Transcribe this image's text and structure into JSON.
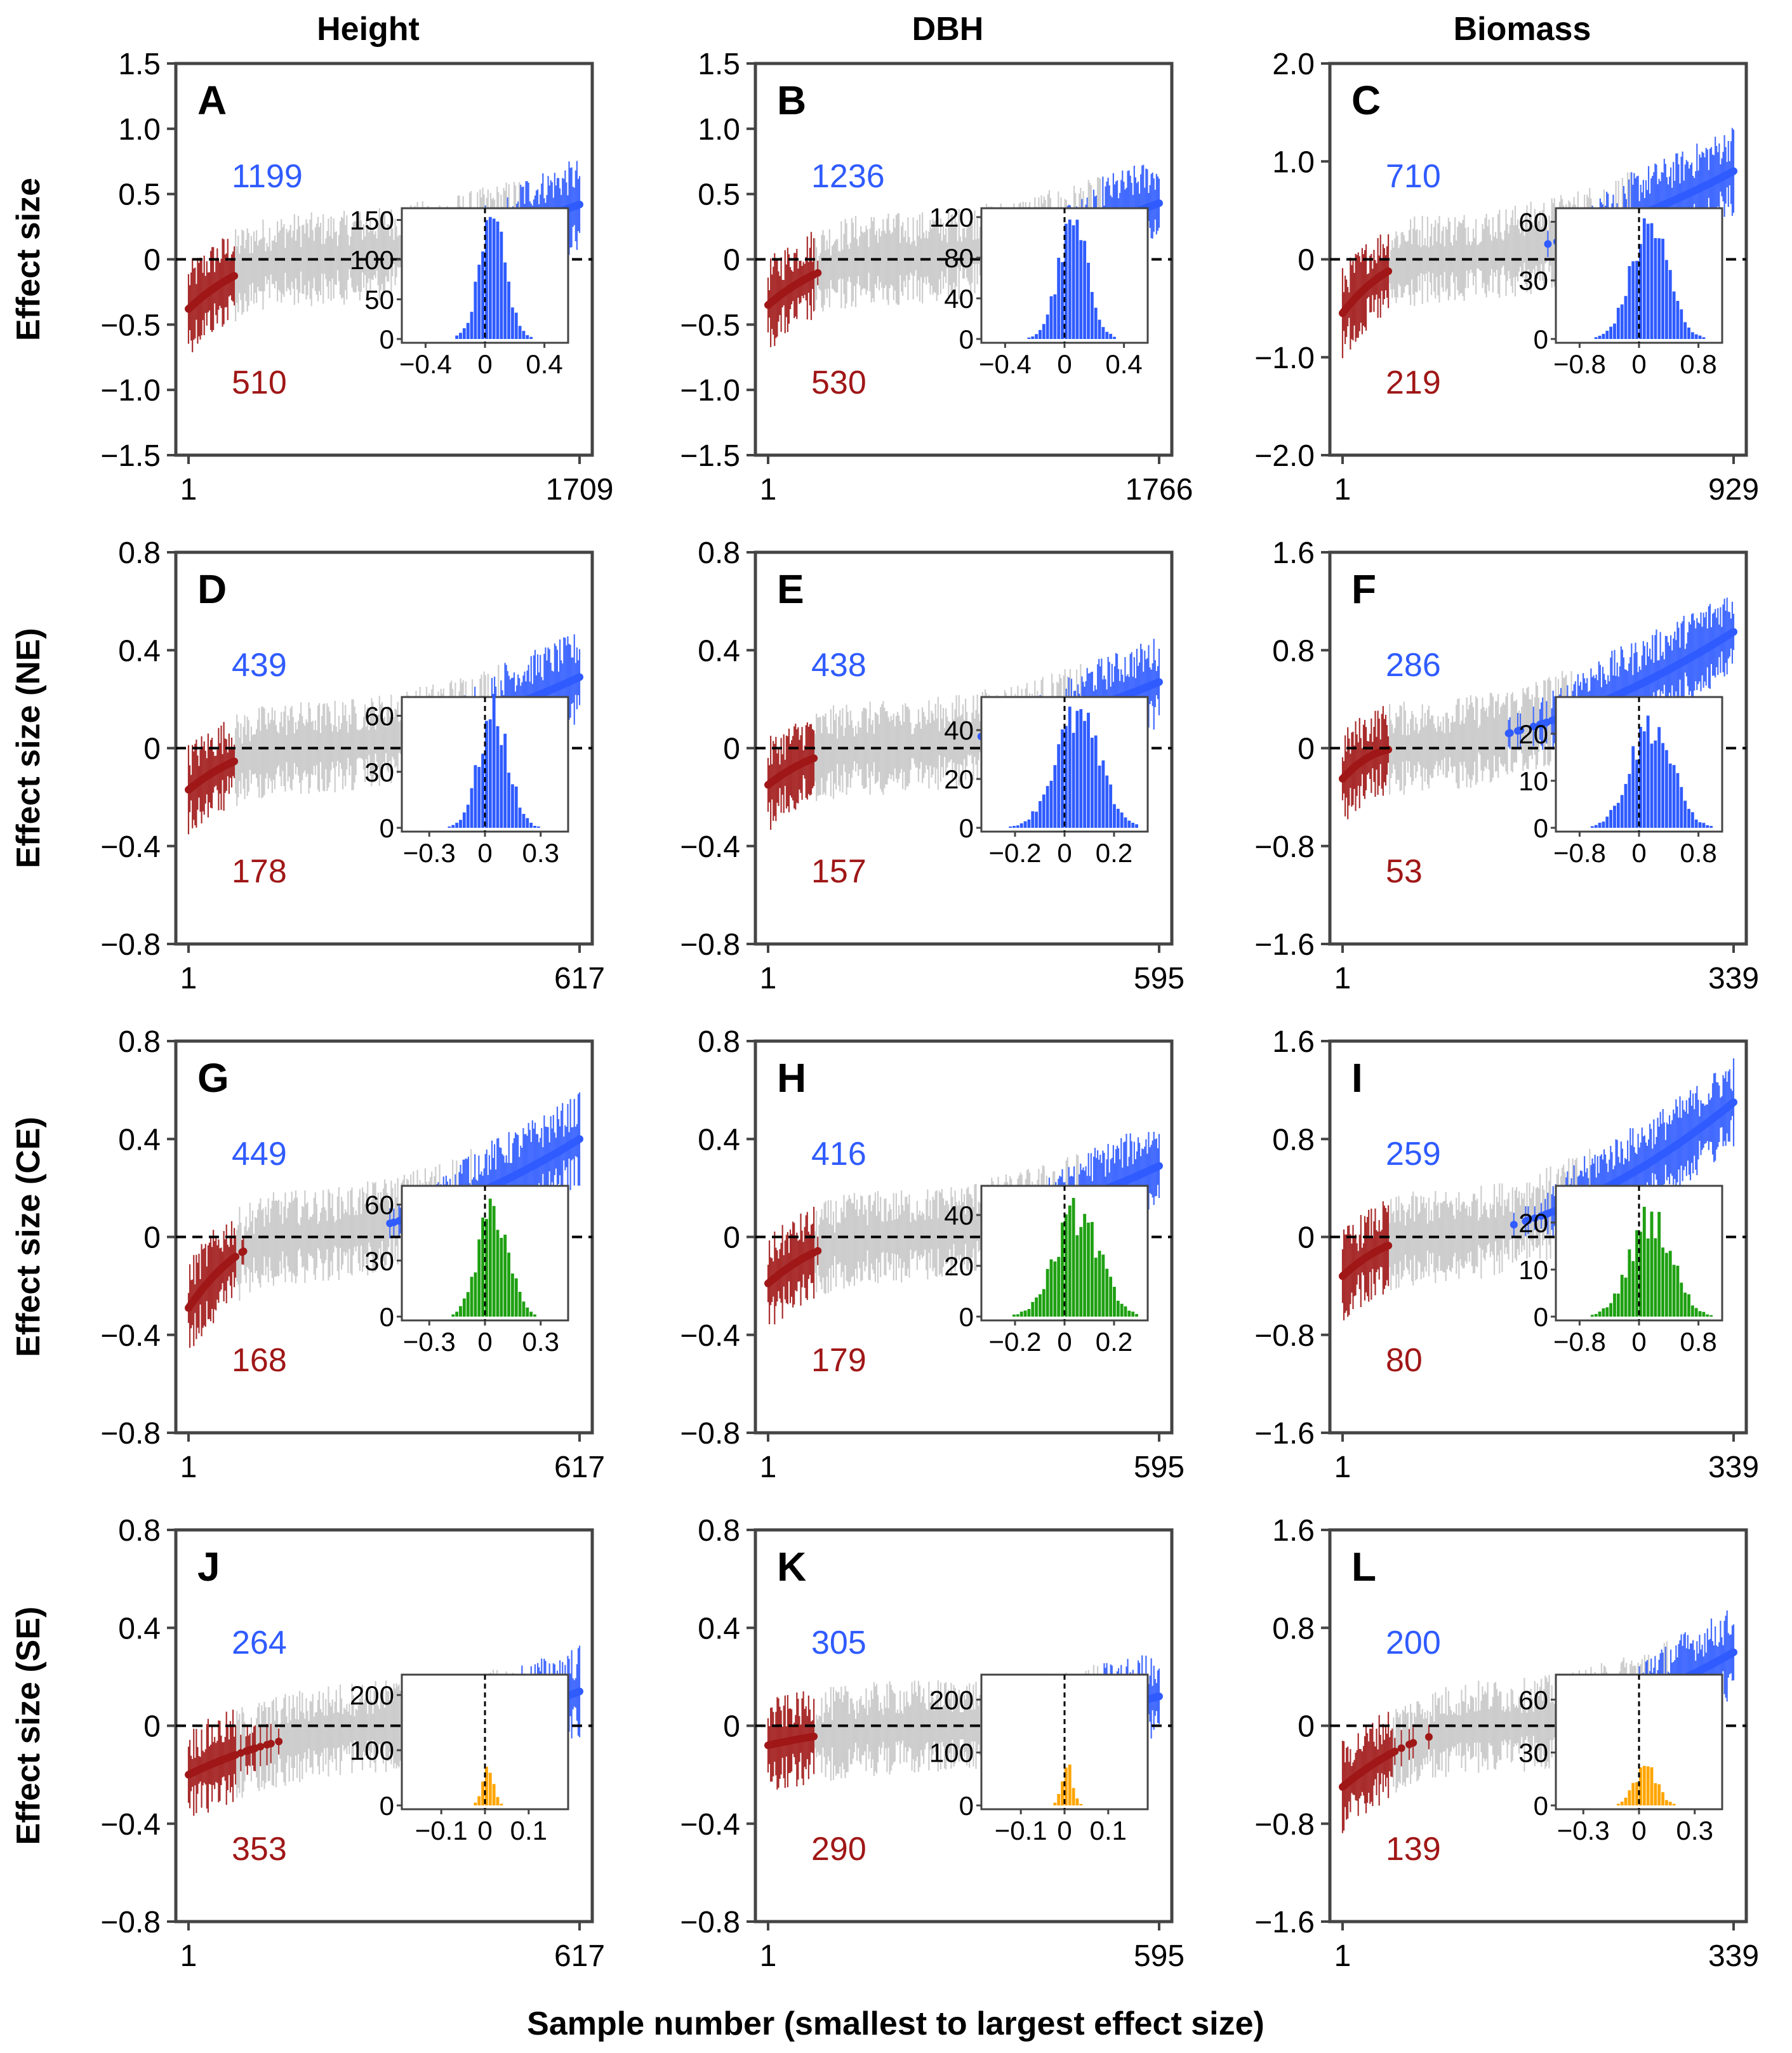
{
  "figure": {
    "x_axis_label": "Sample number (smallest to largest effect size)",
    "column_titles": [
      "Height",
      "DBH",
      "Biomass"
    ],
    "row_labels": [
      "Effect size",
      "Effect size (NE)",
      "Effect size (CE)",
      "Effect size (SE)"
    ]
  },
  "colors": {
    "positive": "#2f5bff",
    "negative": "#a01717",
    "nonsignificant": "#c8c8c8",
    "zero_line": "#000000",
    "frame": "#444444",
    "hist_all": "#2f5bff",
    "hist_CE": "#1fa012",
    "hist_SE": "#ffa500"
  },
  "chart_data": [
    {
      "type": "scatter",
      "panel": "A",
      "column": "Height",
      "ylabel": "Effect size",
      "ylim": [
        -1.5,
        1.5
      ],
      "yticks": [
        "1.5",
        "1.0",
        "0.5",
        "0",
        "−0.5",
        "−1.0",
        "−1.5"
      ],
      "ytick_values": [
        1.5,
        1.0,
        0.5,
        0,
        -0.5,
        -1.0,
        -1.5
      ],
      "x_start": "1",
      "x_end": "1709",
      "n": 1709,
      "n_positive": "1199",
      "n_negative": "510",
      "y_min": -0.38,
      "y_max": 0.42,
      "hist_color": "blue",
      "inset": {
        "type": "bar",
        "xlim": [
          -0.5,
          0.5
        ],
        "xticks": [
          "−0.4",
          "0",
          "0.4"
        ],
        "xtick_values": [
          -0.4,
          0,
          0.4
        ],
        "yticks": [
          "150",
          "100",
          "50",
          "0"
        ],
        "ytick_values": [
          150,
          100,
          50,
          0
        ],
        "ymax": 160,
        "peak": 140,
        "spread": 0.09
      }
    },
    {
      "type": "scatter",
      "panel": "B",
      "column": "DBH",
      "ylabel": "",
      "ylim": [
        -1.5,
        1.5
      ],
      "yticks": [
        "1.5",
        "1.0",
        "0.5",
        "0",
        "−0.5",
        "−1.0",
        "−1.5"
      ],
      "ytick_values": [
        1.5,
        1.0,
        0.5,
        0,
        -0.5,
        -1.0,
        -1.5
      ],
      "x_start": "1",
      "x_end": "1766",
      "n": 1766,
      "n_positive": "1236",
      "n_negative": "530",
      "y_min": -0.35,
      "y_max": 0.43,
      "hist_color": "blue",
      "inset": {
        "type": "bar",
        "xlim": [
          -0.5,
          0.5
        ],
        "xticks": [
          "−0.4",
          "0",
          "0.4"
        ],
        "xtick_values": [
          -0.4,
          0,
          0.4
        ],
        "yticks": [
          "120",
          "80",
          "40",
          "0"
        ],
        "ytick_values": [
          120,
          80,
          40,
          0
        ],
        "ymax": 125,
        "peak": 110,
        "spread": 0.1
      }
    },
    {
      "type": "scatter",
      "panel": "C",
      "column": "Biomass",
      "ylabel": "",
      "ylim": [
        -2.0,
        2.0
      ],
      "yticks": [
        "2.0",
        "1.0",
        "0",
        "−1.0",
        "−2.0"
      ],
      "ytick_values": [
        2.0,
        1.0,
        0,
        -1.0,
        -2.0
      ],
      "x_start": "1",
      "x_end": "929",
      "n": 929,
      "n_positive": "710",
      "n_negative": "219",
      "y_min": -0.55,
      "y_max": 0.9,
      "hist_color": "blue",
      "inset": {
        "type": "bar",
        "xlim": [
          -1.0,
          1.0
        ],
        "xticks": [
          "−0.8",
          "0",
          "0.8"
        ],
        "xtick_values": [
          -0.8,
          0,
          0.8
        ],
        "yticks": [
          "60",
          "30",
          "0"
        ],
        "ytick_values": [
          60,
          30,
          0
        ],
        "ymax": 65,
        "peak": 58,
        "spread": 0.25
      }
    },
    {
      "type": "scatter",
      "panel": "D",
      "column": "Height",
      "ylabel": "Effect size (NE)",
      "ylim": [
        -0.8,
        0.8
      ],
      "yticks": [
        "0.8",
        "0.4",
        "0",
        "−0.4",
        "−0.8"
      ],
      "ytick_values": [
        0.8,
        0.4,
        0,
        -0.4,
        -0.8
      ],
      "x_start": "1",
      "x_end": "617",
      "n": 617,
      "n_positive": "439",
      "n_negative": "178",
      "y_min": -0.17,
      "y_max": 0.29,
      "hist_color": "blue",
      "inset": {
        "type": "bar",
        "xlim": [
          -0.4,
          0.4
        ],
        "xticks": [
          "−0.3",
          "0",
          "0.3"
        ],
        "xtick_values": [
          -0.3,
          0,
          0.3
        ],
        "yticks": [
          "60",
          "30",
          "0"
        ],
        "ytick_values": [
          60,
          30,
          0
        ],
        "ymax": 68,
        "peak": 60,
        "spread": 0.08
      }
    },
    {
      "type": "scatter",
      "panel": "E",
      "column": "DBH",
      "ylabel": "",
      "ylim": [
        -0.8,
        0.8
      ],
      "yticks": [
        "0.8",
        "0.4",
        "0",
        "−0.4",
        "−0.8"
      ],
      "ytick_values": [
        0.8,
        0.4,
        0,
        -0.4,
        -0.8
      ],
      "x_start": "1",
      "x_end": "595",
      "n": 595,
      "n_positive": "438",
      "n_negative": "157",
      "y_min": -0.15,
      "y_max": 0.27,
      "hist_color": "blue",
      "inset": {
        "type": "bar",
        "xlim": [
          -0.3,
          0.3
        ],
        "xticks": [
          "−0.2",
          "0",
          "0.2"
        ],
        "xtick_values": [
          -0.2,
          0,
          0.2
        ],
        "yticks": [
          "40",
          "20",
          "0"
        ],
        "ytick_values": [
          40,
          20,
          0
        ],
        "ymax": 52,
        "peak": 45,
        "spread": 0.09
      }
    },
    {
      "type": "scatter",
      "panel": "F",
      "column": "Biomass",
      "ylabel": "",
      "ylim": [
        -1.6,
        1.6
      ],
      "yticks": [
        "1.6",
        "0.8",
        "0",
        "−0.8",
        "−1.6"
      ],
      "ytick_values": [
        1.6,
        0.8,
        0,
        -0.8,
        -1.6
      ],
      "x_start": "1",
      "x_end": "339",
      "n": 339,
      "n_positive": "286",
      "n_negative": "53",
      "y_min": -0.25,
      "y_max": 0.95,
      "hist_color": "blue",
      "inset": {
        "type": "bar",
        "xlim": [
          -1.0,
          1.0
        ],
        "xticks": [
          "−0.8",
          "0",
          "0.8"
        ],
        "xtick_values": [
          -0.8,
          0,
          0.8
        ],
        "yticks": [
          "20",
          "10",
          "0"
        ],
        "ytick_values": [
          20,
          10,
          0
        ],
        "ymax": 27,
        "peak": 22,
        "spread": 0.28
      }
    },
    {
      "type": "scatter",
      "panel": "G",
      "column": "Height",
      "ylabel": "Effect size (CE)",
      "ylim": [
        -0.8,
        0.8
      ],
      "yticks": [
        "0.8",
        "0.4",
        "0",
        "−0.4",
        "−0.8"
      ],
      "ytick_values": [
        0.8,
        0.4,
        0,
        -0.4,
        -0.8
      ],
      "x_start": "1",
      "x_end": "617",
      "n": 617,
      "n_positive": "449",
      "n_negative": "168",
      "y_min": -0.29,
      "y_max": 0.4,
      "hist_color": "green",
      "inset": {
        "type": "bar",
        "xlim": [
          -0.4,
          0.4
        ],
        "xticks": [
          "−0.3",
          "0",
          "0.3"
        ],
        "xtick_values": [
          -0.3,
          0,
          0.3
        ],
        "yticks": [
          "60",
          "30",
          "0"
        ],
        "ytick_values": [
          60,
          30,
          0
        ],
        "ymax": 68,
        "peak": 58,
        "spread": 0.08
      }
    },
    {
      "type": "scatter",
      "panel": "H",
      "column": "DBH",
      "ylabel": "",
      "ylim": [
        -0.8,
        0.8
      ],
      "yticks": [
        "0.8",
        "0.4",
        "0",
        "−0.4",
        "−0.8"
      ],
      "ytick_values": [
        0.8,
        0.4,
        0,
        -0.4,
        -0.8
      ],
      "x_start": "1",
      "x_end": "595",
      "n": 595,
      "n_positive": "416",
      "n_negative": "179",
      "y_min": -0.19,
      "y_max": 0.29,
      "hist_color": "green",
      "inset": {
        "type": "bar",
        "xlim": [
          -0.3,
          0.3
        ],
        "xticks": [
          "−0.2",
          "0",
          "0.2"
        ],
        "xtick_values": [
          -0.2,
          0,
          0.2
        ],
        "yticks": [
          "40",
          "20",
          "0"
        ],
        "ytick_values": [
          40,
          20,
          0
        ],
        "ymax": 50,
        "peak": 40,
        "spread": 0.09
      }
    },
    {
      "type": "scatter",
      "panel": "I",
      "column": "Biomass",
      "ylabel": "",
      "ylim": [
        -1.6,
        1.6
      ],
      "yticks": [
        "1.6",
        "0.8",
        "0",
        "−0.8",
        "−1.6"
      ],
      "ytick_values": [
        1.6,
        0.8,
        0,
        -0.8,
        -1.6
      ],
      "x_start": "1",
      "x_end": "339",
      "n": 339,
      "n_positive": "259",
      "n_negative": "80",
      "y_min": -0.32,
      "y_max": 1.1,
      "hist_color": "green",
      "inset": {
        "type": "bar",
        "xlim": [
          -1.0,
          1.0
        ],
        "xticks": [
          "−0.8",
          "0",
          "0.8"
        ],
        "xtick_values": [
          -0.8,
          0,
          0.8
        ],
        "yticks": [
          "20",
          "10",
          "0"
        ],
        "ytick_values": [
          20,
          10,
          0
        ],
        "ymax": 27,
        "peak": 21,
        "spread": 0.28
      }
    },
    {
      "type": "scatter",
      "panel": "J",
      "column": "Height",
      "ylabel": "Effect size (SE)",
      "ylim": [
        -0.8,
        0.8
      ],
      "yticks": [
        "0.8",
        "0.4",
        "0",
        "−0.4",
        "−0.8"
      ],
      "ytick_values": [
        0.8,
        0.4,
        0,
        -0.4,
        -0.8
      ],
      "x_start": "1",
      "x_end": "617",
      "n": 617,
      "n_positive": "264",
      "n_negative": "353",
      "y_min": -0.2,
      "y_max": 0.14,
      "hist_color": "orange",
      "inset": {
        "type": "bar",
        "xlim": [
          -0.17,
          0.17
        ],
        "xticks": [
          "−0.1",
          "0",
          "0.1"
        ],
        "xtick_values": [
          -0.1,
          0,
          0.1
        ],
        "yticks": [
          "200",
          "100",
          "0"
        ],
        "ytick_values": [
          200,
          100,
          0
        ],
        "ymax": 230,
        "peak": 75,
        "spread": 0.012
      }
    },
    {
      "type": "scatter",
      "panel": "K",
      "column": "DBH",
      "ylabel": "",
      "ylim": [
        -0.8,
        0.8
      ],
      "yticks": [
        "0.8",
        "0.4",
        "0",
        "−0.4",
        "−0.8"
      ],
      "ytick_values": [
        0.8,
        0.4,
        0,
        -0.4,
        -0.8
      ],
      "x_start": "1",
      "x_end": "595",
      "n": 595,
      "n_positive": "305",
      "n_negative": "290",
      "y_min": -0.08,
      "y_max": 0.12,
      "hist_color": "orange",
      "inset": {
        "type": "bar",
        "xlim": [
          -0.17,
          0.17
        ],
        "xticks": [
          "−0.1",
          "0",
          "0.1"
        ],
        "xtick_values": [
          -0.1,
          0,
          0.1
        ],
        "yticks": [
          "200",
          "100",
          "0"
        ],
        "ytick_values": [
          200,
          100,
          0
        ],
        "ymax": 240,
        "peak": 80,
        "spread": 0.012
      }
    },
    {
      "type": "scatter",
      "panel": "L",
      "column": "Biomass",
      "ylabel": "",
      "ylim": [
        -1.6,
        1.6
      ],
      "yticks": [
        "1.6",
        "0.8",
        "0",
        "−0.8",
        "−1.6"
      ],
      "ytick_values": [
        1.6,
        0.8,
        0,
        -0.8,
        -1.6
      ],
      "x_start": "1",
      "x_end": "339",
      "n": 339,
      "n_positive": "200",
      "n_negative": "139",
      "y_min": -0.5,
      "y_max": 0.6,
      "hist_color": "orange",
      "inset": {
        "type": "bar",
        "xlim": [
          -0.4,
          0.4
        ],
        "xticks": [
          "−0.3",
          "0",
          "0.3"
        ],
        "xtick_values": [
          -0.3,
          0,
          0.3
        ],
        "yticks": [
          "60",
          "30",
          "0"
        ],
        "ytick_values": [
          60,
          30,
          0
        ],
        "ymax": 72,
        "peak": 22,
        "spread": 0.06
      }
    }
  ]
}
